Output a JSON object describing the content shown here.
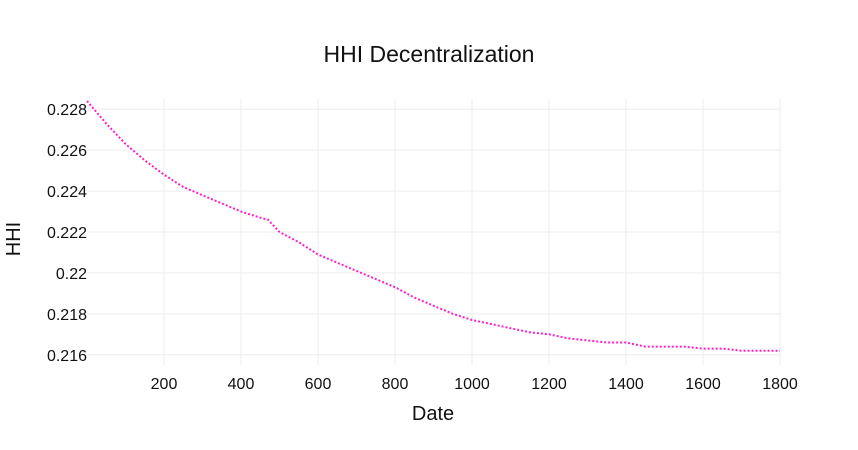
{
  "chart_data": {
    "type": "line",
    "title": "HHI Decentralization",
    "xlabel": "Date",
    "ylabel": "HHI",
    "xlim": [
      0,
      1800
    ],
    "ylim": [
      0.2155,
      0.2285
    ],
    "x_ticks": [
      200,
      400,
      600,
      800,
      1000,
      1200,
      1400,
      1600,
      1800
    ],
    "x_tick_labels": [
      "200",
      "400",
      "600",
      "800",
      "1000",
      "1200",
      "1400",
      "1600",
      "1800"
    ],
    "y_ticks": [
      0.216,
      0.218,
      0.22,
      0.222,
      0.224,
      0.226,
      0.228
    ],
    "y_tick_labels": [
      "0.216",
      "0.218",
      "0.22",
      "0.222",
      "0.224",
      "0.226",
      "0.228"
    ],
    "grid": true,
    "series": [
      {
        "name": "HHI",
        "color": "#ff1fc8",
        "line_style": "dotted",
        "x": [
          0,
          50,
          100,
          150,
          200,
          250,
          300,
          350,
          400,
          450,
          470,
          500,
          550,
          600,
          650,
          700,
          750,
          800,
          850,
          900,
          950,
          1000,
          1050,
          1100,
          1150,
          1200,
          1250,
          1300,
          1350,
          1400,
          1450,
          1500,
          1550,
          1600,
          1650,
          1700,
          1750,
          1800
        ],
        "y": [
          0.2284,
          0.2273,
          0.2263,
          0.2255,
          0.2248,
          0.2242,
          0.2238,
          0.2234,
          0.223,
          0.2227,
          0.2226,
          0.222,
          0.2215,
          0.2209,
          0.2205,
          0.2201,
          0.2197,
          0.2193,
          0.2188,
          0.2184,
          0.218,
          0.2177,
          0.2175,
          0.2173,
          0.2171,
          0.217,
          0.2168,
          0.2167,
          0.2166,
          0.2166,
          0.2164,
          0.2164,
          0.2164,
          0.2163,
          0.2163,
          0.2162,
          0.2162,
          0.2162
        ]
      }
    ]
  }
}
